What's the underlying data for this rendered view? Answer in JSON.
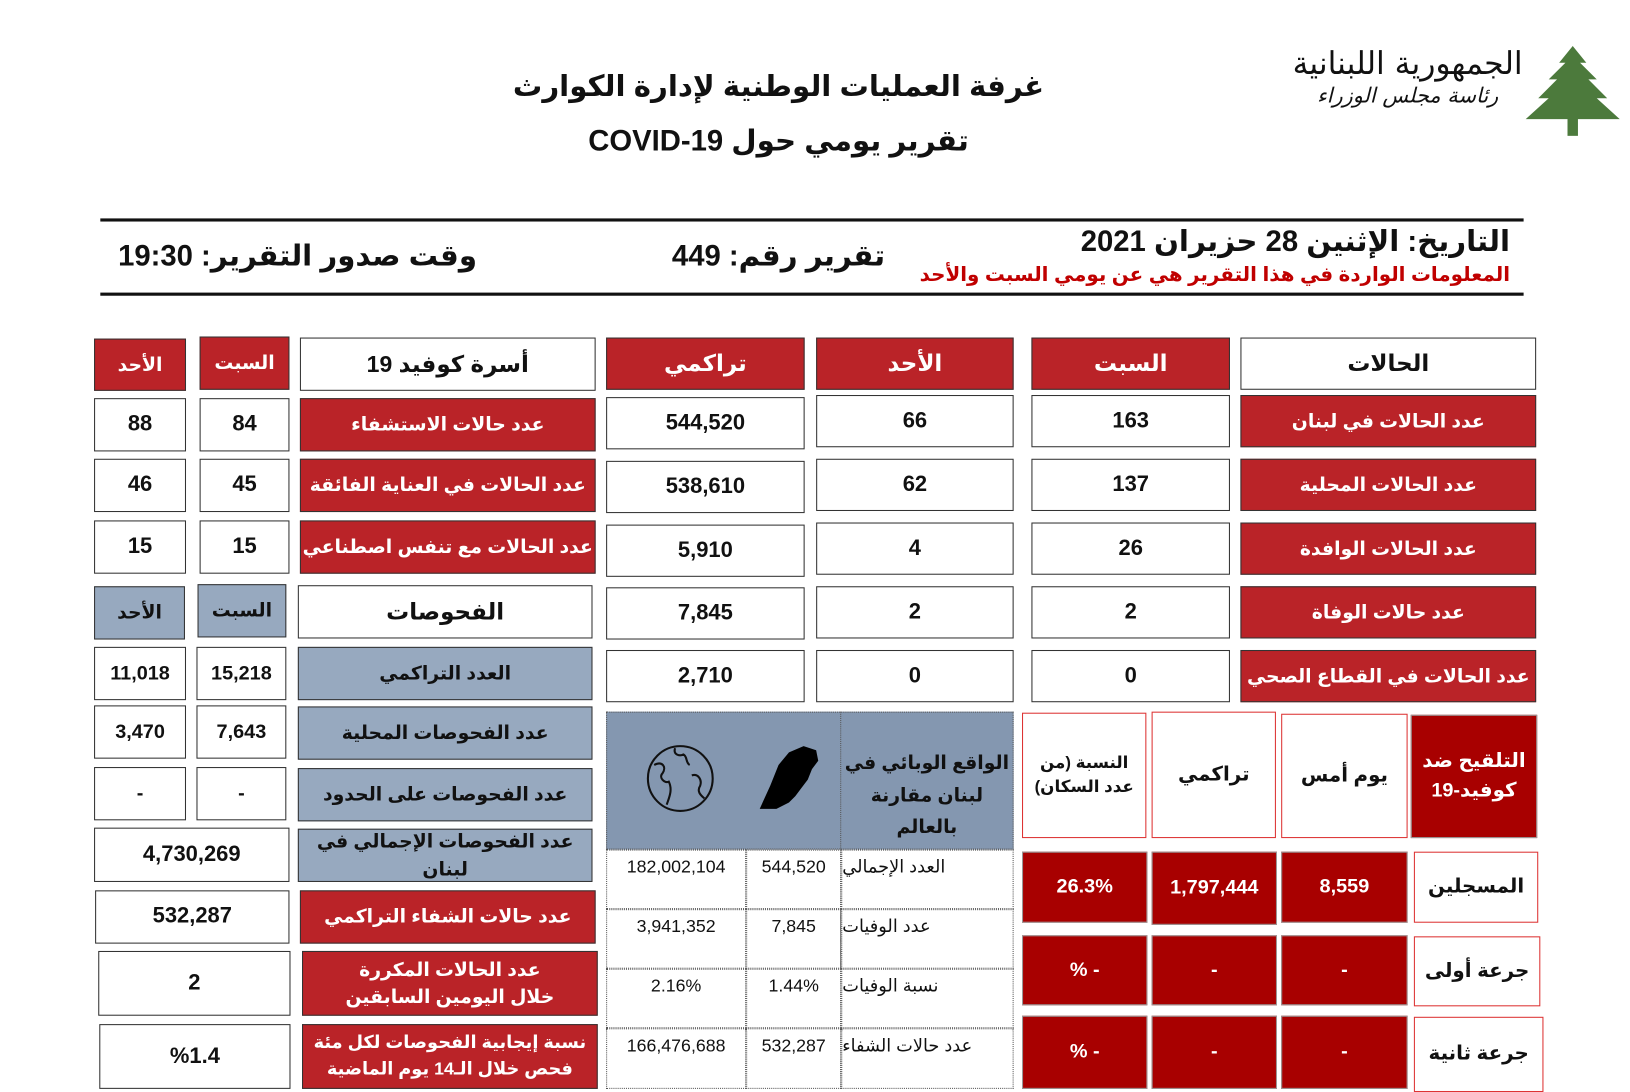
{
  "header": {
    "title": "غرفة العمليات الوطنية لإدارة الكوارث",
    "subtitle": "تقرير يومي حول COVID-19",
    "logo_line1": "الجمهورية اللبنانية",
    "logo_line2": "رئاسة مجلس الوزراء",
    "date": "التاريخ: الإثنين 28 حزيران 2021",
    "note": "المعلومات الواردة في هذا التقرير هي عن يومي السبت والأحد",
    "report_number": "تقرير رقم: 449",
    "report_time": "وقت صدور التقرير: 19:30"
  },
  "colors": {
    "red": "#BA2328",
    "vaccine_red": "#A80000",
    "blue_grey": "#97A9BF",
    "world_panel": "#8497B0"
  },
  "cases": {
    "headers": [
      "الحالات",
      "السبت",
      "الأحد",
      "تراكمي"
    ],
    "rows": [
      {
        "label": "عدد الحالات في لبنان",
        "sat": "163",
        "sun": "66",
        "total": "544,520"
      },
      {
        "label": "عدد الحالات المحلية",
        "sat": "137",
        "sun": "62",
        "total": "538,610"
      },
      {
        "label": "عدد الحالات الوافدة",
        "sat": "26",
        "sun": "4",
        "total": "5,910"
      },
      {
        "label": "عدد حالات الوفاة",
        "sat": "2",
        "sun": "2",
        "total": "7,845"
      },
      {
        "label": "عدد الحالات في القطاع الصحي",
        "sat": "0",
        "sun": "0",
        "total": "2,710"
      }
    ]
  },
  "beds": {
    "headers": [
      "أسرة كوفيد 19",
      "السبت",
      "الأحد"
    ],
    "rows": [
      {
        "label": "عدد حالات الاستشفاء",
        "sat": "84",
        "sun": "88"
      },
      {
        "label": "عدد الحالات في العناية الفائقة",
        "sat": "45",
        "sun": "46"
      },
      {
        "label": "عدد الحالات مع تنفس اصطناعي",
        "sat": "15",
        "sun": "15"
      }
    ]
  },
  "tests": {
    "headers": [
      "الفحوصات",
      "السبت",
      "الأحد"
    ],
    "rows": [
      {
        "label": "العدد التراكمي",
        "sat": "15,218",
        "sun": "11,018"
      },
      {
        "label": "عدد الفحوصات المحلية",
        "sat": "7,643",
        "sun": "3,470"
      },
      {
        "label": "عدد الفحوصات على الحدود",
        "sat": "-",
        "sun": "-"
      }
    ],
    "total_label": "عدد الفحوصات الإجمالي في لبنان",
    "total_value": "4,730,269"
  },
  "extra": [
    {
      "label": "عدد حالات الشفاء التراكمي",
      "value": "532,287"
    },
    {
      "label": "عدد الحالات المكررة خلال اليومين السابقين",
      "value": "2"
    },
    {
      "label": "نسبة إيجابية الفحوصات لكل مئة فحص خلال الـ14 يوم الماضية",
      "value": "%1.4"
    }
  ],
  "world": {
    "title": "الواقع الوبائي في لبنان مقارنة بالعالم",
    "rows": [
      {
        "label": "العدد الإجمالي",
        "lebanon": "544,520",
        "world": "182,002,104"
      },
      {
        "label": "عدد الوفيات",
        "lebanon": "7,845",
        "world": "3,941,352"
      },
      {
        "label": "نسبة الوفيات",
        "lebanon": "1.44%",
        "world": "2.16%"
      },
      {
        "label": "عدد حالات الشفاء",
        "lebanon": "532,287",
        "world": "166,476,688"
      }
    ]
  },
  "vaccine": {
    "headers": [
      "التلقيح ضد كوفيد-19",
      "يوم أمس",
      "تراكمي",
      "النسبة (من عدد السكان)"
    ],
    "rows": [
      {
        "label": "المسجلين",
        "yesterday": "8,559",
        "total": "1,797,444",
        "pct": "26.3%"
      },
      {
        "label": "جرعة أولى",
        "yesterday": "-",
        "total": "-",
        "pct": "- %"
      },
      {
        "label": "جرعة ثانية",
        "yesterday": "-",
        "total": "-",
        "pct": "- %"
      }
    ]
  }
}
